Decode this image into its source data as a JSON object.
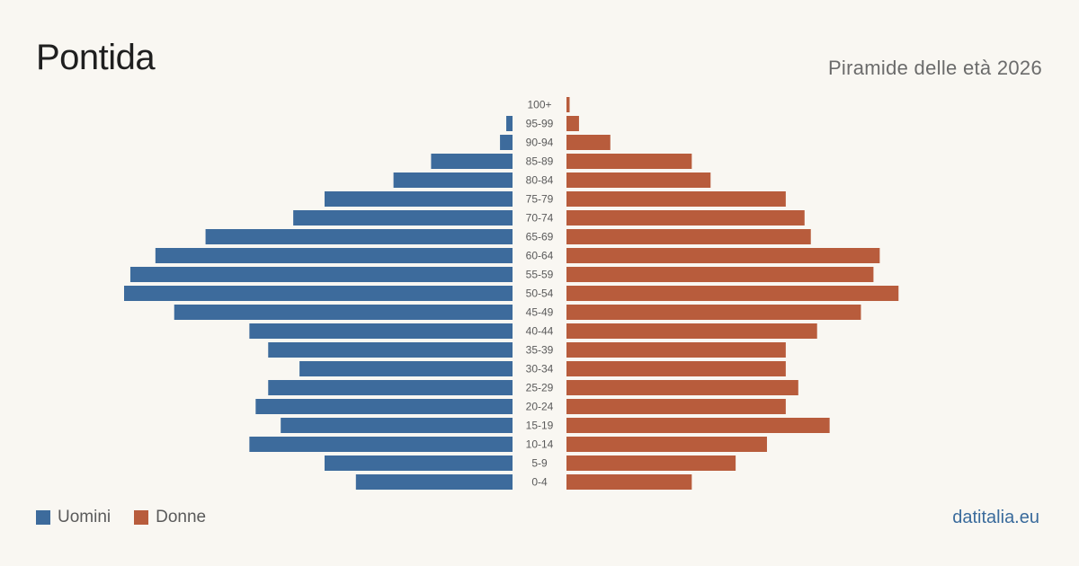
{
  "title": "Pontida",
  "subtitle": "Piramide delle età 2026",
  "brand": "datitalia.eu",
  "colors": {
    "men": "#3d6b9c",
    "women": "#b85c3c",
    "background": "#f9f7f2"
  },
  "legend": {
    "men_label": "Uomini",
    "women_label": "Donne"
  },
  "chart_data": {
    "type": "bar",
    "orientation": "horizontal-pyramid",
    "categories": [
      "100+",
      "95-99",
      "90-94",
      "85-89",
      "80-84",
      "75-79",
      "70-74",
      "65-69",
      "60-64",
      "55-59",
      "50-54",
      "45-49",
      "40-44",
      "35-39",
      "30-34",
      "25-29",
      "20-24",
      "15-19",
      "10-14",
      "5-9",
      "0-4"
    ],
    "series": [
      {
        "name": "Uomini",
        "values": [
          0,
          1,
          2,
          13,
          19,
          30,
          35,
          49,
          57,
          61,
          62,
          54,
          42,
          39,
          34,
          39,
          41,
          37,
          42,
          30,
          25
        ]
      },
      {
        "name": "Donne",
        "values": [
          0.5,
          2,
          7,
          20,
          23,
          35,
          38,
          39,
          50,
          49,
          53,
          47,
          40,
          35,
          35,
          37,
          35,
          42,
          32,
          27,
          20
        ]
      }
    ],
    "legend_position": "bottom-left",
    "grid": false
  }
}
